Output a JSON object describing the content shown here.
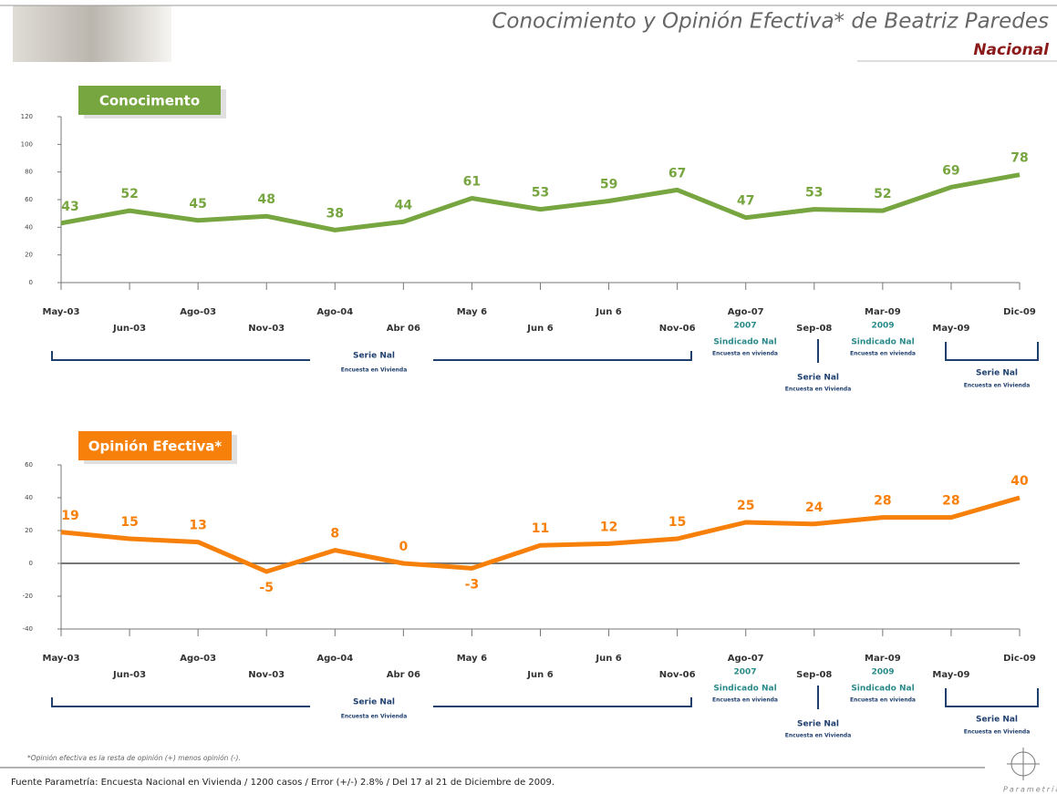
{
  "header": {
    "title": "Conocimiento y Opinión Efectiva* de Beatriz Paredes",
    "subtitle": "Nacional"
  },
  "chart_data": [
    {
      "type": "line",
      "title": "Conocimento",
      "color": "#77a540",
      "zero_line": false,
      "categories": [
        "May-03",
        "Jun-03",
        "Ago-03",
        "Nov-03",
        "Ago-04",
        "Abr 06",
        "May 6",
        "Jun 6",
        "Jun 6",
        "Nov-06",
        "Ago-07",
        "Sep-08",
        "Mar-09",
        "May-09",
        "Dic-09"
      ],
      "values": [
        43,
        52,
        45,
        48,
        38,
        44,
        61,
        53,
        59,
        67,
        47,
        53,
        52,
        69,
        78
      ],
      "ylim": [
        0,
        120
      ],
      "yticks": [
        0,
        20,
        40,
        60,
        80,
        100,
        120
      ],
      "annotations": [
        {
          "lines": [
            "Serie Nal",
            "Encuesta en Vivienda"
          ]
        },
        {
          "lines": [
            "2007",
            "Sindicado Nal",
            "Encuesta en vivienda"
          ]
        },
        {
          "lines": [
            "Serie Nal",
            "Encuesta en Vivienda"
          ]
        },
        {
          "lines": [
            "2009",
            "Sindicado Nal",
            "Encuesta en vivienda"
          ]
        },
        {
          "lines": [
            "Serie Nal",
            "Encuesta en Vivienda"
          ]
        }
      ]
    },
    {
      "type": "line",
      "title": "Opinión Efectiva*",
      "color": "#f7800a",
      "zero_line": true,
      "categories": [
        "May-03",
        "Jun-03",
        "Ago-03",
        "Nov-03",
        "Ago-04",
        "Abr 06",
        "May 6",
        "Jun 6",
        "Jun 6",
        "Nov-06",
        "Ago-07",
        "Sep-08",
        "Mar-09",
        "May-09",
        "Dic-09"
      ],
      "values": [
        19,
        15,
        13,
        -5,
        8,
        0,
        -3,
        11,
        12,
        15,
        25,
        24,
        28,
        28,
        40
      ],
      "ylim": [
        -40,
        60
      ],
      "yticks": [
        -40,
        -20,
        0,
        20,
        40,
        60
      ],
      "annotations": [
        {
          "lines": [
            "Serie Nal",
            "Encuesta en Vivienda"
          ]
        },
        {
          "lines": [
            "2007",
            "Sindicado Nal",
            "Encuesta en vivienda"
          ]
        },
        {
          "lines": [
            "Serie Nal",
            "Encuesta en Vivienda"
          ]
        },
        {
          "lines": [
            "2009",
            "Sindicado Nal",
            "Encuesta en vivienda"
          ]
        },
        {
          "lines": [
            "Serie Nal",
            "Encuesta en Vivienda"
          ]
        }
      ]
    }
  ],
  "footnote": "*Opinión efectiva es la resta de opinión (+) menos opinión (-).",
  "source": "Fuente Parametría: Encuesta Nacional en Vivienda / 1200 casos / Error (+/-) 2.8% / Del 17 al 21 de Diciembre de 2009.",
  "logo_text": "Parametría"
}
